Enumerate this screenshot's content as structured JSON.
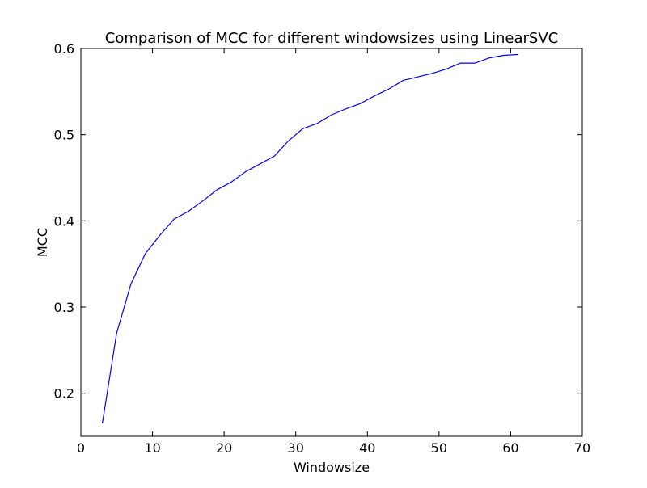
{
  "chart_data": {
    "type": "line",
    "title": "Comparison of MCC for different windowsizes using LinearSVC",
    "xlabel": "Windowsize",
    "ylabel": "MCC",
    "xlim": [
      0,
      70
    ],
    "ylim": [
      0.15,
      0.6
    ],
    "xticks": [
      0,
      10,
      20,
      30,
      40,
      50,
      60,
      70
    ],
    "xtick_labels": [
      "0",
      "10",
      "20",
      "30",
      "40",
      "50",
      "60",
      "70"
    ],
    "yticks": [
      0.2,
      0.3,
      0.4,
      0.5,
      0.6
    ],
    "ytick_labels": [
      "0.2",
      "0.3",
      "0.4",
      "0.5",
      "0.6"
    ],
    "grid": false,
    "legend": "none",
    "series": [
      {
        "color": "#0000ff",
        "x": [
          3,
          5,
          7,
          9,
          11,
          13,
          15,
          17,
          19,
          21,
          23,
          25,
          27,
          29,
          31,
          33,
          35,
          37,
          39,
          41,
          43,
          45,
          47,
          49,
          51,
          53,
          55,
          57,
          59,
          61
        ],
        "y": [
          0.165,
          0.27,
          0.327,
          0.362,
          0.383,
          0.402,
          0.411,
          0.423,
          0.436,
          0.445,
          0.457,
          0.466,
          0.475,
          0.493,
          0.507,
          0.513,
          0.523,
          0.53,
          0.536,
          0.545,
          0.553,
          0.563,
          0.567,
          0.571,
          0.576,
          0.583,
          0.583,
          0.589,
          0.592,
          0.593
        ]
      }
    ]
  }
}
